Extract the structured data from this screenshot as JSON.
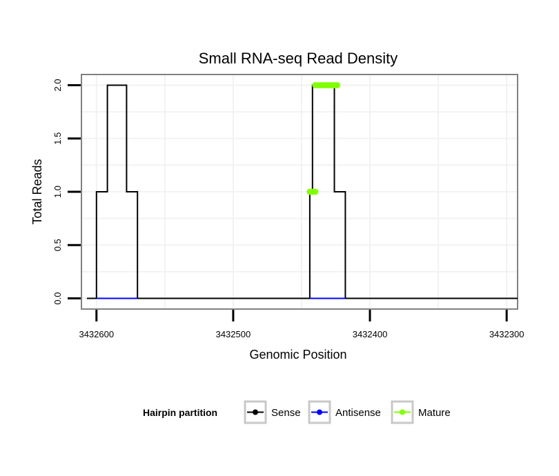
{
  "chart_data": {
    "type": "line",
    "title": "Small RNA-seq Read Density",
    "xlabel": "Genomic Position",
    "ylabel": "Total Reads",
    "x_reversed": true,
    "xlim": [
      3432292,
      3432611
    ],
    "ylim": [
      -0.1,
      2.1
    ],
    "x_ticks": [
      3432600,
      3432500,
      3432400,
      3432300
    ],
    "x_tick_labels": [
      "3432600",
      "3432500",
      "3432400",
      "3432300"
    ],
    "y_ticks": [
      0,
      0.5,
      1,
      1.5,
      2
    ],
    "y_tick_labels": [
      "0.0",
      "0.5",
      "1.0",
      "1.5",
      "2.0"
    ],
    "grid": true,
    "legend": {
      "title": "Hairpin partition",
      "position": "bottom",
      "entries": [
        "Sense",
        "Antisense",
        "Mature"
      ]
    },
    "series": [
      {
        "name": "Sense",
        "color": "#000000",
        "style": "line",
        "x": [
          3432607,
          3432600,
          3432600,
          3432592,
          3432592,
          3432578,
          3432578,
          3432570,
          3432570,
          3432292
        ],
        "y": [
          0,
          0,
          1,
          1,
          2,
          2,
          1,
          1,
          0,
          0
        ]
      },
      {
        "name": "Sense",
        "color": "#000000",
        "style": "line",
        "x": [
          3432444,
          3432444,
          3432442,
          3432442,
          3432426,
          3432426,
          3432418,
          3432418
        ],
        "y": [
          0,
          1,
          1,
          2,
          2,
          1,
          1,
          0
        ]
      },
      {
        "name": "Antisense",
        "color": "#0000ff",
        "style": "line",
        "x": [
          3432600,
          3432570
        ],
        "y": [
          0,
          0
        ]
      },
      {
        "name": "Antisense",
        "color": "#0000ff",
        "style": "line",
        "x": [
          3432444,
          3432418
        ],
        "y": [
          0,
          0
        ]
      },
      {
        "name": "Mature",
        "color": "#80ff00",
        "style": "points",
        "x": [
          3432444,
          3432442,
          3432440
        ],
        "y": [
          1,
          1,
          1
        ]
      },
      {
        "name": "Mature",
        "color": "#80ff00",
        "style": "points",
        "x": [
          3432440,
          3432438,
          3432436,
          3432434,
          3432432,
          3432430,
          3432428,
          3432426,
          3432424
        ],
        "y": [
          2,
          2,
          2,
          2,
          2,
          2,
          2,
          2,
          2
        ]
      }
    ],
    "legend_colors": {
      "Sense": "#000000",
      "Antisense": "#0000ff",
      "Mature": "#80ff00"
    }
  }
}
